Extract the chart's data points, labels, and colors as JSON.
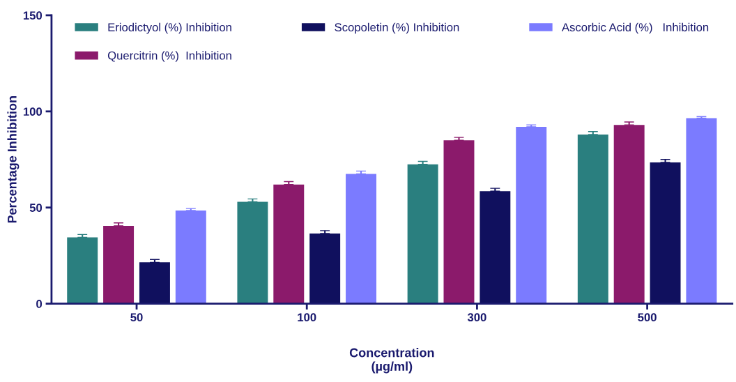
{
  "chart_data": {
    "type": "bar",
    "xlabel": "Concentration\n(µg/ml)",
    "ylabel": "Percentage Inhibition",
    "categories": [
      "50",
      "100",
      "300",
      "500"
    ],
    "series": [
      {
        "name": "Eriodictyol (%) Inhibition",
        "color": "#2a7f7f",
        "values": [
          34.5,
          53,
          72.5,
          88
        ],
        "errors": [
          1.5,
          1.5,
          1.5,
          1.5
        ]
      },
      {
        "name": "Quercitrin (%)  Inhibition",
        "color": "#8b1a6b",
        "values": [
          40.5,
          62,
          85,
          93
        ],
        "errors": [
          1.5,
          1.5,
          1.5,
          1.5
        ]
      },
      {
        "name": "Scopoletin (%) Inhibition",
        "color": "#10105e",
        "values": [
          21.5,
          36.5,
          58.5,
          73.5
        ],
        "errors": [
          1.5,
          1.5,
          1.5,
          1.5
        ]
      },
      {
        "name": "Ascorbic Acid (%)   Inhibition",
        "color": "#7b7bff",
        "values": [
          48.5,
          67.5,
          92,
          96.5
        ],
        "errors": [
          1,
          1.5,
          1,
          0.8
        ]
      }
    ],
    "ylim": [
      0,
      150
    ],
    "yticks": [
      0,
      50,
      100,
      150
    ],
    "grid": false,
    "legend": "top"
  }
}
